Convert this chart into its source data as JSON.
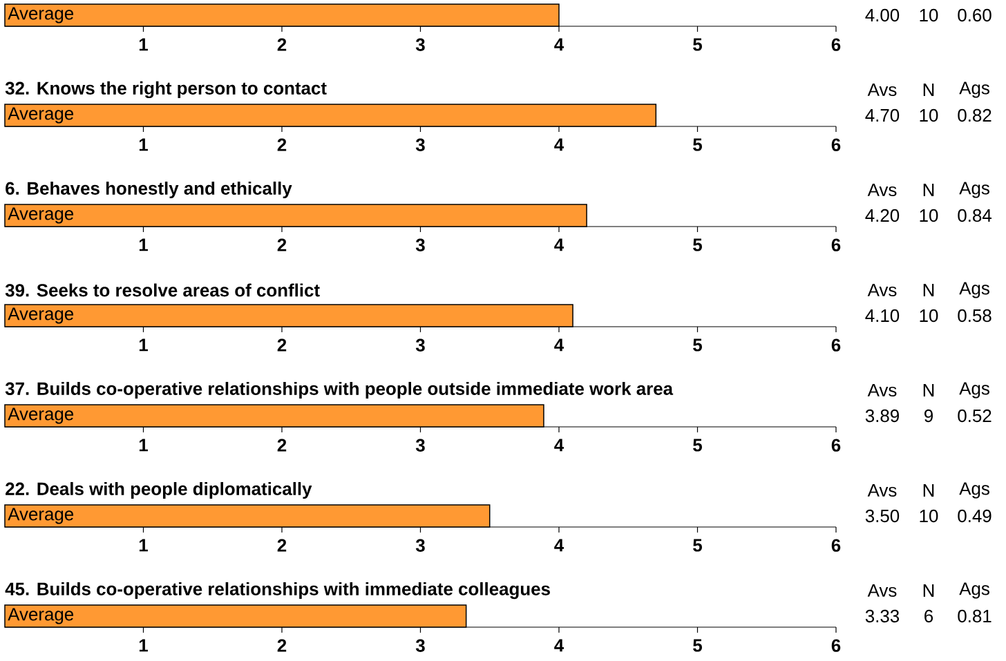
{
  "chart_data": [
    {
      "type": "bar",
      "orientation": "horizontal",
      "categories": [
        "Average"
      ],
      "values": [
        4.0
      ],
      "color": "#ff9933",
      "xlim": [
        0,
        6
      ],
      "xticks": [
        1,
        2,
        3,
        4,
        5,
        6
      ],
      "annotations": [
        "4.00",
        "10",
        "0.60"
      ]
    },
    {
      "type": "bar",
      "orientation": "horizontal",
      "title": "32. Knows the right person to contact",
      "categories": [
        "Average"
      ],
      "values": [
        4.7
      ],
      "color": "#ff9933",
      "xlim": [
        0,
        6
      ],
      "xticks": [
        1,
        2,
        3,
        4,
        5,
        6
      ],
      "annotations": [
        "Avs",
        "N",
        "Ags",
        "4.70",
        "10",
        "0.82"
      ]
    },
    {
      "type": "bar",
      "orientation": "horizontal",
      "title": "6. Behaves honestly and ethically",
      "categories": [
        "Average"
      ],
      "values": [
        4.2
      ],
      "color": "#ff9933",
      "xlim": [
        0,
        6
      ],
      "xticks": [
        1,
        2,
        3,
        4,
        5,
        6
      ],
      "annotations": [
        "Avs",
        "N",
        "Ags",
        "4.20",
        "10",
        "0.84"
      ]
    },
    {
      "type": "bar",
      "orientation": "horizontal",
      "title": "39. Seeks to resolve areas of conflict",
      "categories": [
        "Average"
      ],
      "values": [
        4.1
      ],
      "color": "#ff9933",
      "xlim": [
        0,
        6
      ],
      "xticks": [
        1,
        2,
        3,
        4,
        5,
        6
      ],
      "annotations": [
        "Avs",
        "N",
        "Ags",
        "4.10",
        "10",
        "0.58"
      ]
    },
    {
      "type": "bar",
      "orientation": "horizontal",
      "title": "37. Builds co-operative relationships with people outside immediate work area",
      "categories": [
        "Average"
      ],
      "values": [
        3.89
      ],
      "color": "#ff9933",
      "xlim": [
        0,
        6
      ],
      "xticks": [
        1,
        2,
        3,
        4,
        5,
        6
      ],
      "annotations": [
        "Avs",
        "N",
        "Ags",
        "3.89",
        "9",
        "0.52"
      ]
    },
    {
      "type": "bar",
      "orientation": "horizontal",
      "title": "22. Deals with people diplomatically",
      "categories": [
        "Average"
      ],
      "values": [
        3.5
      ],
      "color": "#ff9933",
      "xlim": [
        0,
        6
      ],
      "xticks": [
        1,
        2,
        3,
        4,
        5,
        6
      ],
      "annotations": [
        "Avs",
        "N",
        "Ags",
        "3.50",
        "10",
        "0.49"
      ]
    },
    {
      "type": "bar",
      "orientation": "horizontal",
      "title": "45. Builds co-operative relationships with immediate colleagues",
      "categories": [
        "Average"
      ],
      "values": [
        3.33
      ],
      "color": "#ff9933",
      "xlim": [
        0,
        6
      ],
      "xticks": [
        1,
        2,
        3,
        4,
        5,
        6
      ],
      "annotations": [
        "Avs",
        "N",
        "Ags",
        "3.33",
        "6",
        "0.81"
      ]
    }
  ]
}
